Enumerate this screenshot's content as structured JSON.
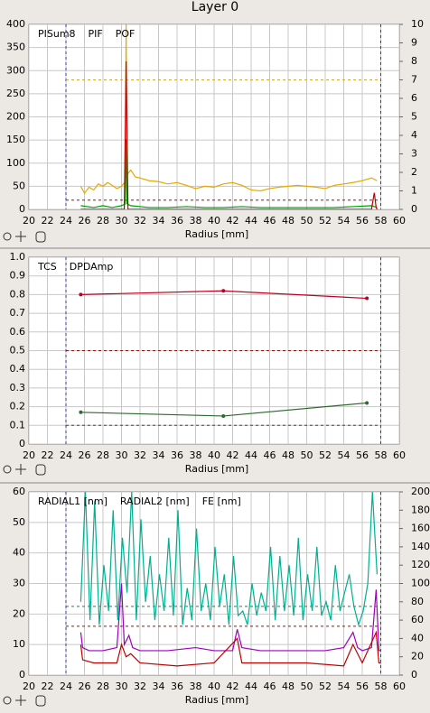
{
  "title": "Layer 0",
  "chart_data": [
    {
      "type": "line",
      "xlabel": "Radius [mm]",
      "xlim": [
        20,
        60
      ],
      "xticks": [
        20,
        22,
        24,
        26,
        28,
        30,
        32,
        34,
        36,
        38,
        40,
        42,
        44,
        46,
        48,
        50,
        52,
        54,
        56,
        58,
        60
      ],
      "ylim": [
        0,
        400
      ],
      "yticks": [
        0,
        50,
        100,
        150,
        200,
        250,
        300,
        350,
        400
      ],
      "y2lim": [
        0,
        10
      ],
      "y2ticks": [
        0,
        1,
        2,
        3,
        4,
        5,
        6,
        7,
        8,
        9,
        10
      ],
      "grid": true,
      "vlines": [
        24,
        58
      ],
      "vline_color": "#3030d0",
      "hlines": [
        {
          "value": 280,
          "color": "#e8a800"
        },
        {
          "value": 0.5,
          "color": "#c00000",
          "axis": "y2"
        }
      ],
      "series": [
        {
          "name": "PISum8",
          "color": "#e8a800",
          "x": [
            25.6,
            26.0,
            26.5,
            27.0,
            27.5,
            28.0,
            28.5,
            29.0,
            29.5,
            30.0,
            30.4,
            30.5,
            30.6,
            31.0,
            31.5,
            32,
            33,
            34,
            35,
            36,
            37,
            38,
            39,
            40,
            41,
            42,
            43,
            44,
            45,
            46,
            47,
            48,
            49,
            50,
            51,
            52,
            53,
            54,
            55,
            56,
            57,
            57.6
          ],
          "values": [
            50,
            35,
            48,
            42,
            55,
            50,
            58,
            52,
            45,
            50,
            60,
            400,
            75,
            85,
            70,
            68,
            62,
            60,
            55,
            58,
            52,
            45,
            50,
            48,
            55,
            58,
            52,
            42,
            40,
            45,
            48,
            50,
            52,
            50,
            48,
            45,
            52,
            55,
            58,
            62,
            68,
            62
          ]
        },
        {
          "name": "PIF",
          "color": "#00a000",
          "axis": "y2",
          "x": [
            25.6,
            27,
            28,
            29,
            30,
            30.4,
            30.5,
            30.6,
            31,
            33,
            35,
            37,
            39,
            41,
            43,
            45,
            47,
            49,
            51,
            53,
            55,
            57,
            57.6
          ],
          "values": [
            0.2,
            0.1,
            0.2,
            0.1,
            0.2,
            0.3,
            3.8,
            0.3,
            0.2,
            0.1,
            0.1,
            0.15,
            0.1,
            0.1,
            0.15,
            0.1,
            0.1,
            0.1,
            0.1,
            0.1,
            0.15,
            0.2,
            0.1
          ]
        },
        {
          "name": "POF",
          "color": "#c00000",
          "axis": "y2",
          "x": [
            25.6,
            30.3,
            30.5,
            30.7,
            31,
            40,
            50,
            57,
            57.3,
            57.5,
            57.6
          ],
          "values": [
            0,
            0,
            8,
            0,
            0,
            0,
            0,
            0,
            0.9,
            0.1,
            0
          ]
        }
      ]
    },
    {
      "type": "line",
      "xlabel": "Radius [mm]",
      "xlim": [
        20,
        60
      ],
      "xticks": [
        20,
        22,
        24,
        26,
        28,
        30,
        32,
        34,
        36,
        38,
        40,
        42,
        44,
        46,
        48,
        50,
        52,
        54,
        56,
        58,
        60
      ],
      "ylim": [
        0,
        1
      ],
      "yticks": [
        0,
        0.1,
        0.2,
        0.3,
        0.4,
        0.5,
        0.6,
        0.7,
        0.8,
        0.9,
        {
          "value": 1,
          "label": "1.0"
        }
      ],
      "grid": true,
      "vlines": [
        24,
        58
      ],
      "vline_color": "#3030d0",
      "markers": true,
      "hlines": [
        {
          "value": 0.5,
          "color": "#c00000"
        },
        {
          "value": 0.1,
          "color": "#206020"
        }
      ],
      "series": [
        {
          "name": "TCS",
          "color": "#2e6a2e",
          "x": [
            25.6,
            41,
            56.5
          ],
          "values": [
            0.17,
            0.15,
            0.22
          ]
        },
        {
          "name": "DPDAmp",
          "color": "#c00020",
          "x": [
            25.6,
            41,
            56.5
          ],
          "values": [
            0.8,
            0.82,
            0.78
          ]
        }
      ]
    },
    {
      "type": "line",
      "xlabel": "Radius [mm]",
      "xlim": [
        20,
        60
      ],
      "xticks": [
        20,
        22,
        24,
        26,
        28,
        30,
        32,
        34,
        36,
        38,
        40,
        42,
        44,
        46,
        48,
        50,
        52,
        54,
        56,
        58,
        60
      ],
      "ylim": [
        0,
        60
      ],
      "yticks": [
        0,
        10,
        20,
        30,
        40,
        50,
        60
      ],
      "y2lim": [
        0,
        200
      ],
      "y2ticks": [
        0,
        20,
        40,
        60,
        80,
        100,
        120,
        140,
        160,
        180,
        200
      ],
      "grid": true,
      "vlines": [
        24,
        58
      ],
      "vline_color": "#3030d0",
      "hlines": [
        {
          "value": 16,
          "color": "#c00000"
        },
        {
          "value": 75,
          "color": "#208040",
          "axis": "y2"
        }
      ],
      "series": [
        {
          "name": "RADIAL1 [nm]",
          "color": "#a000c0",
          "x": [
            25.6,
            25.8,
            26.5,
            28,
            29.5,
            30.0,
            30.3,
            30.8,
            31.2,
            32,
            35,
            38,
            40,
            42,
            42.5,
            43,
            45,
            48,
            50,
            52,
            54,
            55,
            55.5,
            56,
            57,
            57.5,
            57.8,
            58
          ],
          "values": [
            14,
            9,
            8,
            8,
            9,
            30,
            10,
            13,
            9,
            8,
            8,
            9,
            8,
            8,
            15,
            9,
            8,
            8,
            8,
            8,
            9,
            14,
            9,
            8,
            9,
            28,
            8,
            8
          ]
        },
        {
          "name": "RADIAL2 [nm]",
          "color": "#c00000",
          "x": [
            25.6,
            25.8,
            27,
            29.5,
            30,
            30.5,
            31,
            32,
            36,
            40,
            42.5,
            43,
            46,
            50,
            54,
            55,
            56,
            57.5,
            57.8,
            58
          ],
          "values": [
            10,
            5,
            4,
            4,
            10,
            6,
            7,
            4,
            3,
            4,
            12,
            4,
            4,
            4,
            3,
            10,
            4,
            14,
            4,
            4
          ]
        },
        {
          "name": "FE [nm]",
          "color": "#00b090",
          "axis": "y2",
          "x": [
            25.6,
            26.1,
            26.6,
            27.1,
            27.6,
            28.1,
            28.6,
            29.1,
            29.6,
            30.1,
            30.6,
            31.1,
            31.6,
            32.1,
            32.6,
            33.1,
            33.6,
            34.1,
            34.6,
            35.1,
            35.6,
            36.1,
            36.6,
            37.1,
            37.6,
            38.1,
            38.6,
            39.1,
            39.6,
            40.1,
            40.6,
            41.1,
            41.6,
            42.1,
            42.6,
            43.1,
            43.6,
            44.1,
            44.6,
            45.1,
            45.6,
            46.1,
            46.6,
            47.1,
            47.6,
            48.1,
            48.6,
            49.1,
            49.6,
            50.1,
            50.6,
            51.1,
            51.6,
            52.1,
            52.6,
            53.1,
            53.6,
            54.1,
            54.6,
            55.1,
            55.6,
            56.1,
            56.6,
            57.1,
            57.6
          ],
          "values": [
            80,
            200,
            60,
            190,
            55,
            120,
            70,
            180,
            60,
            150,
            90,
            200,
            60,
            170,
            80,
            130,
            60,
            110,
            70,
            150,
            65,
            180,
            55,
            95,
            60,
            160,
            70,
            100,
            60,
            140,
            75,
            110,
            55,
            130,
            65,
            70,
            55,
            100,
            65,
            90,
            70,
            140,
            60,
            130,
            70,
            120,
            65,
            150,
            60,
            110,
            70,
            140,
            65,
            80,
            60,
            120,
            70,
            90,
            110,
            75,
            55,
            70,
            100,
            200,
            110
          ]
        }
      ]
    }
  ]
}
